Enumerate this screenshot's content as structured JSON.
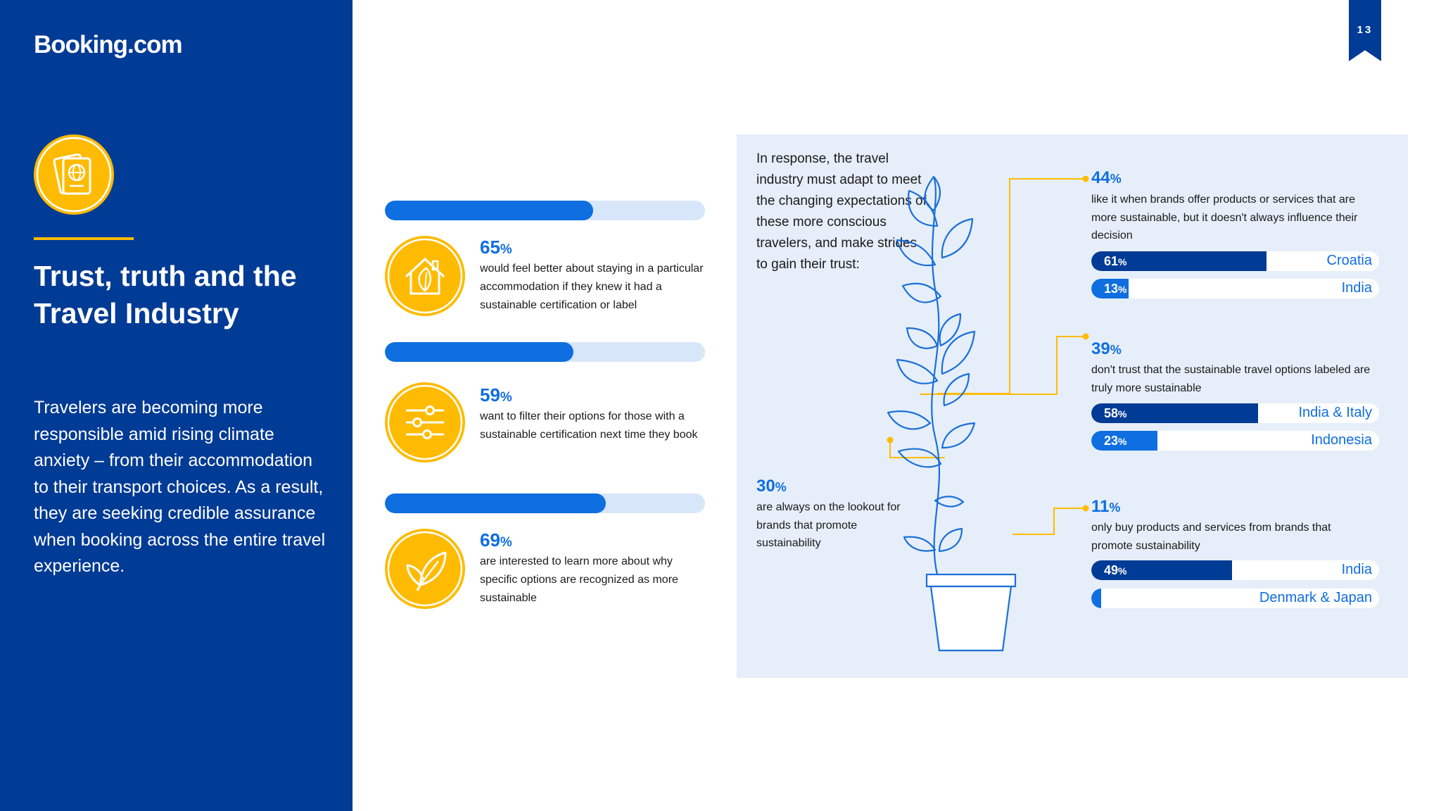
{
  "header": {
    "logo": "Booking.com",
    "page_number": "13"
  },
  "left_panel": {
    "title": "Trust, truth and the Travel Industry",
    "body": "Travelers are becoming more responsible amid rising climate anxiety – from their accommodation to their transport choices. As a result, they are seeking credible assurance when booking across the entire travel experience.",
    "badge_icon": "passport-icon",
    "accent_color": "#febb02",
    "panel_color": "#003b95"
  },
  "stats": [
    {
      "value": 65,
      "number": "65",
      "unit": "%",
      "icon": "house-leaf-icon",
      "text": "would feel better about staying in a particular accommodation if they knew it had a sustainable certification or label"
    },
    {
      "value": 59,
      "number": "59",
      "unit": "%",
      "icon": "filter-sliders-icon",
      "text": "want to filter their options for those with a sustainable certification next time they book"
    },
    {
      "value": 69,
      "number": "69",
      "unit": "%",
      "icon": "leaf-icon",
      "text": "are interested to learn more about why specific options are recognized as more sustainable"
    }
  ],
  "infographic": {
    "intro": "In response, the travel industry must adapt to meet the changing expectations of these more conscious travelers, and make strides to gain their trust:",
    "left_callout": {
      "number": "30",
      "unit": "%",
      "text": "are always on the lookout for brands that promote sustainability"
    },
    "callouts": [
      {
        "number": "44",
        "unit": "%",
        "text": "like it when brands offer products or services that are more sustainable, but it doesn't always influence their decision",
        "bars": [
          {
            "value": 61,
            "number": "61",
            "unit": "%",
            "country": "Croatia",
            "shade": "high"
          },
          {
            "value": 13,
            "number": "13",
            "unit": "%",
            "country": "India",
            "shade": "low"
          }
        ]
      },
      {
        "number": "39",
        "unit": "%",
        "text": "don't trust that the sustainable travel options labeled are truly more sustainable",
        "bars": [
          {
            "value": 58,
            "number": "58",
            "unit": "%",
            "country": "India & Italy",
            "shade": "high"
          },
          {
            "value": 23,
            "number": "23",
            "unit": "%",
            "country": "Indonesia",
            "shade": "low"
          }
        ]
      },
      {
        "number": "11",
        "unit": "%",
        "text": "only buy products and services from brands that promote sustainability",
        "bars": [
          {
            "value": 49,
            "number": "49",
            "unit": "%",
            "country": "India",
            "shade": "high"
          },
          {
            "value": 2,
            "number": "2",
            "unit": "%",
            "country": "Denmark & Japan",
            "shade": "low"
          }
        ]
      }
    ],
    "colors": {
      "high": "#003b95",
      "low": "#0f6ee0",
      "box": "#e6eef9",
      "line": "#febb02"
    }
  }
}
